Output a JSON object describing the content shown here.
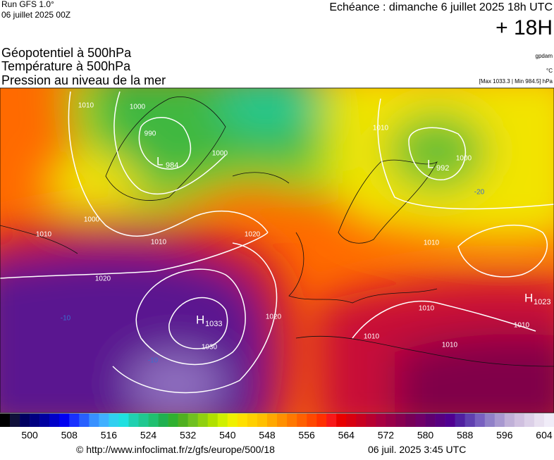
{
  "header": {
    "run": "Run GFS 1.0°",
    "run_date": "06 juillet 2025 00Z",
    "forecast": "Echéance : dimanche 6 juillet 2025 18h UTC",
    "lead": "+ 18H",
    "fields": [
      "Géopotentiel à 500hPa",
      "Température à 500hPa",
      "Pression au niveau de la mer"
    ],
    "units": [
      "gpdam",
      "°C",
      "[Max 1033.3 | Min 984.5] hPa"
    ]
  },
  "map": {
    "centers": [
      {
        "letter": "L",
        "value": 984
      },
      {
        "letter": "L",
        "value": 992
      },
      {
        "letter": "H",
        "value": 1033
      },
      {
        "letter": "H",
        "value": 1023
      }
    ],
    "isobar_labels": [
      1010,
      1000,
      990,
      1000,
      1000,
      1010,
      1010,
      1020,
      1020,
      1020,
      1030,
      1010,
      1000,
      1010,
      1010,
      1010,
      1010,
      1010
    ],
    "temperature_labels": [
      -20,
      -10,
      -10
    ]
  },
  "colorbar": {
    "ticks": [
      500,
      508,
      516,
      524,
      532,
      540,
      548,
      556,
      564,
      572,
      580,
      588,
      596,
      604
    ],
    "colors": [
      "#000000",
      "#10103a",
      "#000060",
      "#000080",
      "#0000a0",
      "#0000c8",
      "#0000f0",
      "#1830ff",
      "#2860ff",
      "#3890ff",
      "#40b0ff",
      "#30d0f0",
      "#20e0e0",
      "#20d0b0",
      "#20c890",
      "#20c070",
      "#20b050",
      "#30b030",
      "#50b020",
      "#70c020",
      "#90d010",
      "#b0e000",
      "#d0f000",
      "#f0f000",
      "#ffe000",
      "#ffd000",
      "#ffc000",
      "#ffa800",
      "#ff9000",
      "#ff7800",
      "#ff6000",
      "#ff4800",
      "#ff3000",
      "#f81818",
      "#e80000",
      "#d80010",
      "#c80020",
      "#b80030",
      "#a80040",
      "#980048",
      "#880050",
      "#780058",
      "#700068",
      "#600070",
      "#580080",
      "#500090",
      "#5020a0",
      "#6040b0",
      "#7860c0",
      "#9080c8",
      "#a898d0",
      "#c0b0d8",
      "#d0c0e0",
      "#dcd0e8",
      "#e8e0f0",
      "#f0ecf8"
    ]
  },
  "footer": {
    "source": "© http://www.infoclimat.fr/z/gfs/europe/500/18",
    "timestamp": "06 juil. 2025  3:45 UTC"
  }
}
